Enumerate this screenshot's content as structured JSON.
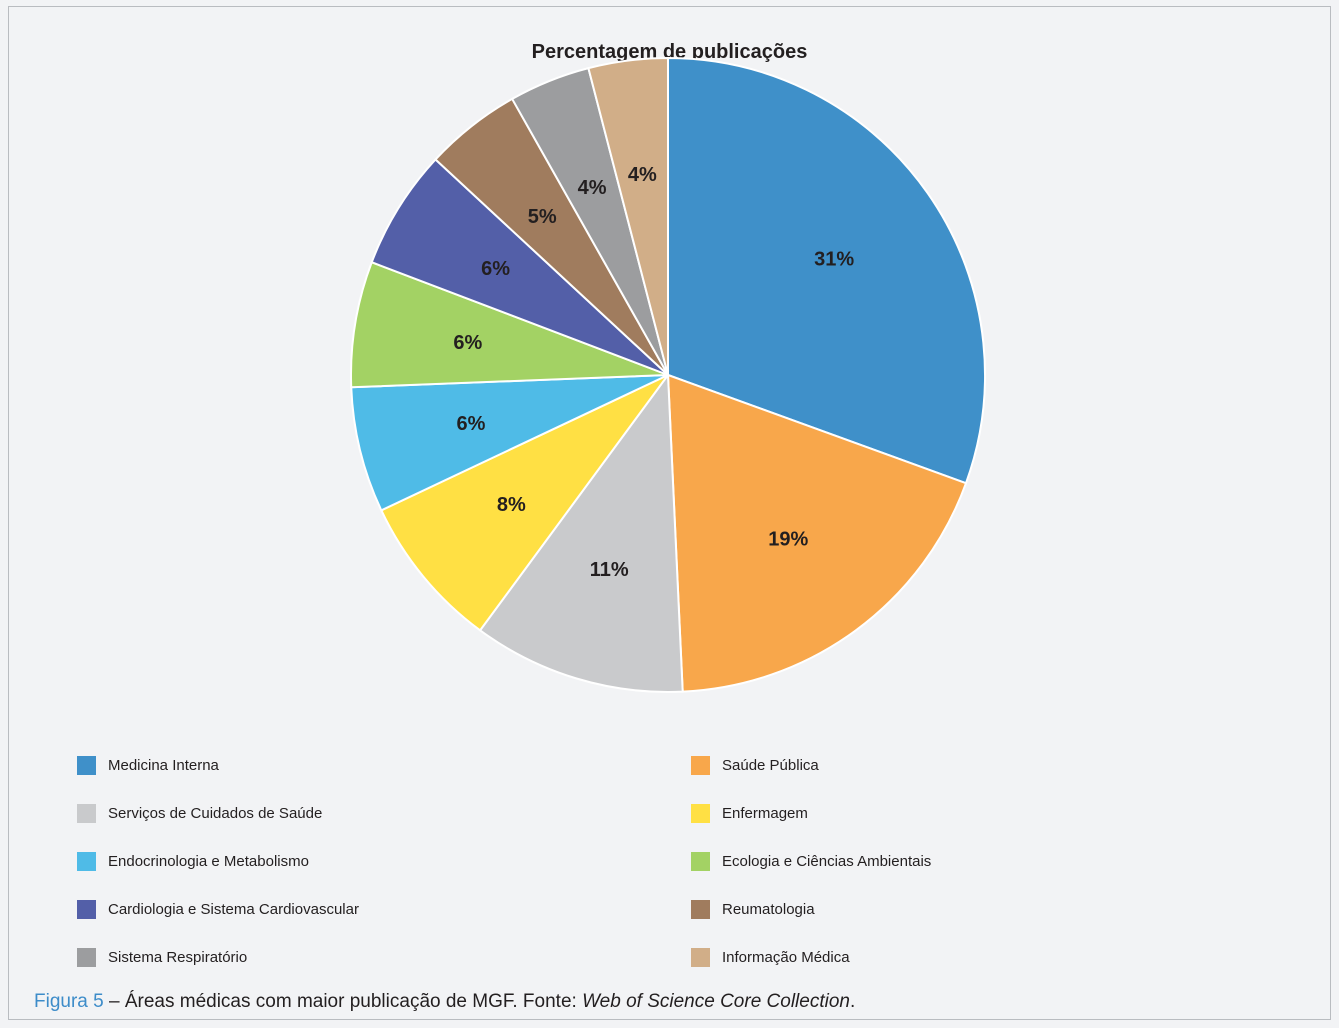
{
  "chart_data": {
    "type": "pie",
    "title": "Percentagem de publicações",
    "slices": [
      {
        "name": "Medicina Interna",
        "value": 31,
        "label": "31%",
        "color": "#3f90c9"
      },
      {
        "name": "Saúde Pública",
        "value": 19,
        "label": "19%",
        "color": "#f8a74b"
      },
      {
        "name": "Serviços de Cuidados de Saúde",
        "value": 11,
        "label": "11%",
        "color": "#c9cacc"
      },
      {
        "name": "Enfermagem",
        "value": 8,
        "label": "8%",
        "color": "#ffe044"
      },
      {
        "name": "Endocrinologia e Metabolismo",
        "value": 6.5,
        "label": "6%",
        "color": "#4fbbe7"
      },
      {
        "name": "Ecologia e Ciências Ambientais",
        "value": 6.5,
        "label": "6%",
        "color": "#a3d264"
      },
      {
        "name": "Cardiologia e Sistema Cardiovascular",
        "value": 6.2,
        "label": "6%",
        "color": "#535fa8"
      },
      {
        "name": "Reumatologia",
        "value": 5,
        "label": "5%",
        "color": "#a07c5e"
      },
      {
        "name": "Sistema Respiratório",
        "value": 4.2,
        "label": "4%",
        "color": "#9c9d9f"
      },
      {
        "name": "Informação Médica",
        "value": 4.1,
        "label": "4%",
        "color": "#d1ae88"
      }
    ],
    "legend_position": "bottom"
  },
  "caption": {
    "figure": "Figura 5",
    "text": " – Áreas médicas com maior publicação de MGF. Fonte: ",
    "source": "Web of Science Core Collection",
    "end": "."
  }
}
